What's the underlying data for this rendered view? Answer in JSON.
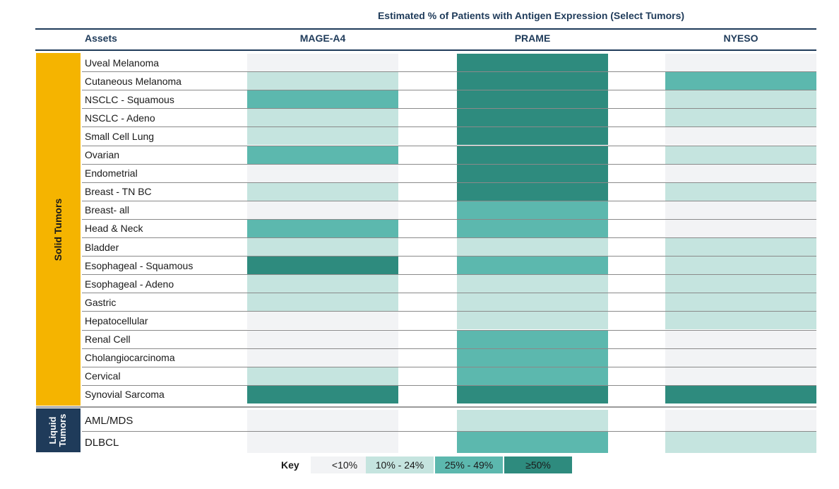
{
  "title": "Estimated % of Patients with Antigen Expression (Select Tumors)",
  "header": {
    "assets": "Assets"
  },
  "sections": {
    "solid": "Solid Tumors",
    "liquid": "Liquid Tumors"
  },
  "colors": {
    "lt10": "#f2f3f5",
    "10to24": "#c5e4df",
    "25to49": "#5cb8ae",
    "ge50": "#2e8b7e"
  },
  "key": {
    "title": "Key",
    "items": [
      {
        "label": "<10%",
        "level": 0
      },
      {
        "label": "10% - 24%",
        "level": 1
      },
      {
        "label": "25% - 49%",
        "level": 2
      },
      {
        "label": "≥50%",
        "level": 3
      }
    ]
  },
  "chart_data": {
    "type": "heatmap",
    "title": "Estimated % of Patients with Antigen Expression (Select Tumors)",
    "columns": [
      "MAGE-A4",
      "PRAME",
      "NYESO"
    ],
    "levels": [
      "<10%",
      "10% - 24%",
      "25% - 49%",
      "≥50%"
    ],
    "rows": [
      {
        "name": "Uveal Melanoma",
        "section": "Solid Tumors",
        "values": [
          0,
          3,
          0
        ]
      },
      {
        "name": "Cutaneous Melanoma",
        "section": "Solid Tumors",
        "values": [
          1,
          3,
          2
        ]
      },
      {
        "name": "NSCLC - Squamous",
        "section": "Solid Tumors",
        "values": [
          2,
          3,
          1
        ]
      },
      {
        "name": "NSCLC - Adeno",
        "section": "Solid Tumors",
        "values": [
          1,
          3,
          1
        ]
      },
      {
        "name": "Small Cell Lung",
        "section": "Solid Tumors",
        "values": [
          1,
          3,
          0
        ]
      },
      {
        "name": "Ovarian",
        "section": "Solid Tumors",
        "values": [
          2,
          3,
          1
        ]
      },
      {
        "name": "Endometrial",
        "section": "Solid Tumors",
        "values": [
          0,
          3,
          0
        ]
      },
      {
        "name": "Breast - TN BC",
        "section": "Solid Tumors",
        "values": [
          1,
          3,
          1
        ]
      },
      {
        "name": "Breast- all",
        "section": "Solid Tumors",
        "values": [
          0,
          2,
          0
        ]
      },
      {
        "name": "Head & Neck",
        "section": "Solid Tumors",
        "values": [
          2,
          2,
          0
        ]
      },
      {
        "name": "Bladder",
        "section": "Solid Tumors",
        "values": [
          1,
          1,
          1
        ]
      },
      {
        "name": "Esophageal - Squamous",
        "section": "Solid Tumors",
        "values": [
          3,
          2,
          1
        ]
      },
      {
        "name": "Esophageal - Adeno",
        "section": "Solid Tumors",
        "values": [
          1,
          1,
          1
        ]
      },
      {
        "name": "Gastric",
        "section": "Solid Tumors",
        "values": [
          1,
          1,
          1
        ]
      },
      {
        "name": "Hepatocellular",
        "section": "Solid Tumors",
        "values": [
          0,
          1,
          1
        ]
      },
      {
        "name": "Renal Cell",
        "section": "Solid Tumors",
        "values": [
          0,
          2,
          0
        ]
      },
      {
        "name": "Cholangiocarcinoma",
        "section": "Solid Tumors",
        "values": [
          0,
          2,
          0
        ]
      },
      {
        "name": "Cervical",
        "section": "Solid Tumors",
        "values": [
          1,
          2,
          0
        ]
      },
      {
        "name": "Synovial Sarcoma",
        "section": "Solid Tumors",
        "values": [
          3,
          3,
          3
        ]
      },
      {
        "name": "AML/MDS",
        "section": "Liquid Tumors",
        "values": [
          0,
          1,
          0
        ]
      },
      {
        "name": "DLBCL",
        "section": "Liquid Tumors",
        "values": [
          0,
          2,
          1
        ]
      }
    ]
  }
}
